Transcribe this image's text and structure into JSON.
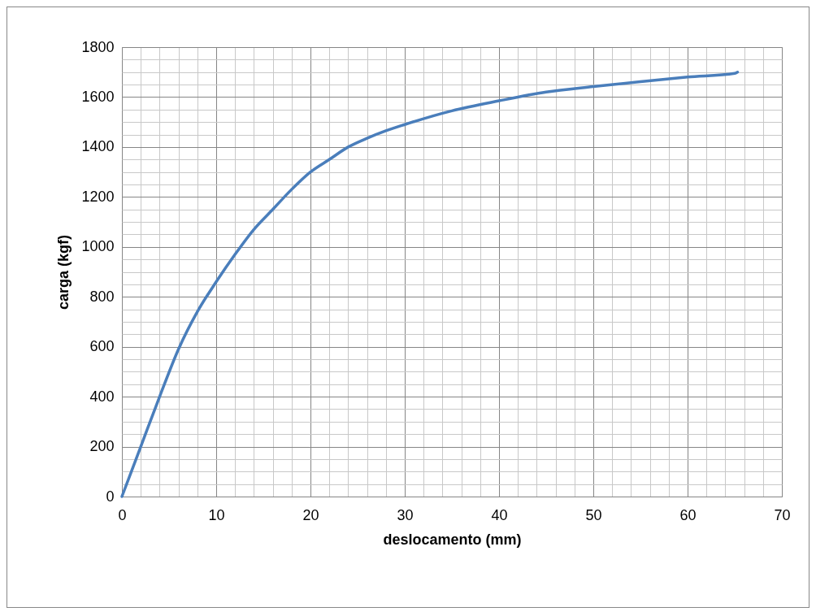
{
  "chart_data": {
    "type": "line",
    "xlabel": "deslocamento (mm)",
    "ylabel": "carga (kgf)",
    "x": [
      0,
      2,
      4,
      6,
      8,
      10,
      12,
      14,
      16,
      18,
      20,
      22,
      24,
      26,
      28,
      30,
      35,
      40,
      45,
      50,
      55,
      60,
      65,
      65.3
    ],
    "series": [
      {
        "color": "#4a7ebb",
        "values": [
          0,
          200,
          400,
          590,
          740,
          860,
          970,
          1070,
          1150,
          1230,
          1300,
          1350,
          1400,
          1435,
          1465,
          1490,
          1545,
          1585,
          1620,
          1642,
          1662,
          1680,
          1695,
          1700
        ]
      }
    ],
    "xlim": [
      0,
      70
    ],
    "ylim": [
      0,
      1800
    ],
    "xticks": [
      0,
      {
        "value": 2,
        "label": null
      },
      {
        "value": 4,
        "label": null
      },
      {
        "value": 6,
        "label": null
      },
      {
        "value": 8,
        "label": null
      },
      10,
      {
        "value": 12,
        "label": null
      },
      {
        "value": 14,
        "label": null
      },
      {
        "value": 16,
        "label": null
      },
      {
        "value": 18,
        "label": null
      },
      20,
      {
        "value": 22,
        "label": null
      },
      {
        "value": 24,
        "label": null
      },
      {
        "value": 26,
        "label": null
      },
      {
        "value": 28,
        "label": null
      },
      30,
      {
        "value": 32,
        "label": null
      },
      {
        "value": 34,
        "label": null
      },
      {
        "value": 36,
        "label": null
      },
      {
        "value": 38,
        "label": null
      },
      40,
      {
        "value": 42,
        "label": null
      },
      {
        "value": 44,
        "label": null
      },
      {
        "value": 46,
        "label": null
      },
      {
        "value": 48,
        "label": null
      },
      50,
      {
        "value": 52,
        "label": null
      },
      {
        "value": 54,
        "label": null
      },
      {
        "value": 56,
        "label": null
      },
      {
        "value": 58,
        "label": null
      },
      60,
      {
        "value": 62,
        "label": null
      },
      {
        "value": 64,
        "label": null
      },
      {
        "value": 66,
        "label": null
      },
      {
        "value": 68,
        "label": null
      },
      70
    ],
    "yticks": [
      0,
      {
        "value": 50,
        "label": null
      },
      {
        "value": 100,
        "label": null
      },
      {
        "value": 150,
        "label": null
      },
      200,
      {
        "value": 250,
        "label": null
      },
      {
        "value": 300,
        "label": null
      },
      {
        "value": 350,
        "label": null
      },
      400,
      {
        "value": 450,
        "label": null
      },
      {
        "value": 500,
        "label": null
      },
      {
        "value": 550,
        "label": null
      },
      600,
      {
        "value": 650,
        "label": null
      },
      {
        "value": 700,
        "label": null
      },
      {
        "value": 750,
        "label": null
      },
      800,
      {
        "value": 850,
        "label": null
      },
      {
        "value": 900,
        "label": null
      },
      {
        "value": 950,
        "label": null
      },
      1000,
      {
        "value": 1050,
        "label": null
      },
      {
        "value": 1100,
        "label": null
      },
      {
        "value": 1150,
        "label": null
      },
      1200,
      {
        "value": 1250,
        "label": null
      },
      {
        "value": 1300,
        "label": null
      },
      {
        "value": 1350,
        "label": null
      },
      1400,
      {
        "value": 1450,
        "label": null
      },
      {
        "value": 1500,
        "label": null
      },
      {
        "value": 1550,
        "label": null
      },
      1600,
      {
        "value": 1650,
        "label": null
      },
      {
        "value": 1700,
        "label": null
      },
      {
        "value": 1750,
        "label": null
      },
      1800
    ],
    "grid": true,
    "marker": "none",
    "line_style": "solid"
  }
}
